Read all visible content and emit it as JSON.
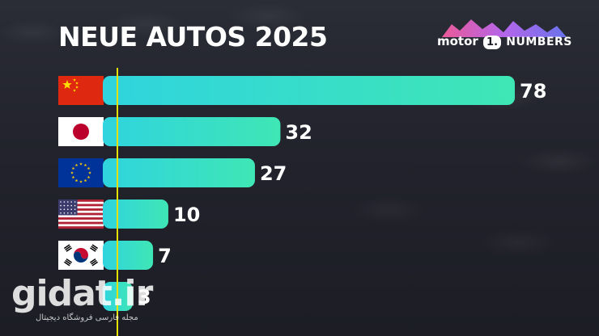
{
  "title": "NEUE AUTOS 2025",
  "logo": {
    "brand_left": "motor",
    "brand_badge": "1.",
    "brand_right": "NUMBERS"
  },
  "watermark": {
    "text": "gidat.ir",
    "subtitle": "مجله فارسی فروشگاه دیجیتال"
  },
  "colors": {
    "bar_start": "#2fd4de",
    "bar_end": "#3fe6b5",
    "axis_line": "#e8e000",
    "label": "#ffffff"
  },
  "chart_data": {
    "type": "bar",
    "orientation": "horizontal",
    "title": "NEUE AUTOS 2025",
    "categories": [
      "China",
      "Japan",
      "EU",
      "USA",
      "South Korea",
      "Other"
    ],
    "flags": [
      "china-flag",
      "japan-flag",
      "eu-flag",
      "usa-flag",
      "south-korea-flag",
      "unknown-flag"
    ],
    "values": [
      78,
      32,
      27,
      10,
      7,
      3
    ],
    "value_labels": [
      "78",
      "32",
      "27",
      "10",
      "7",
      "3"
    ],
    "xlim": [
      0,
      80
    ],
    "grid": false,
    "legend": "none"
  }
}
